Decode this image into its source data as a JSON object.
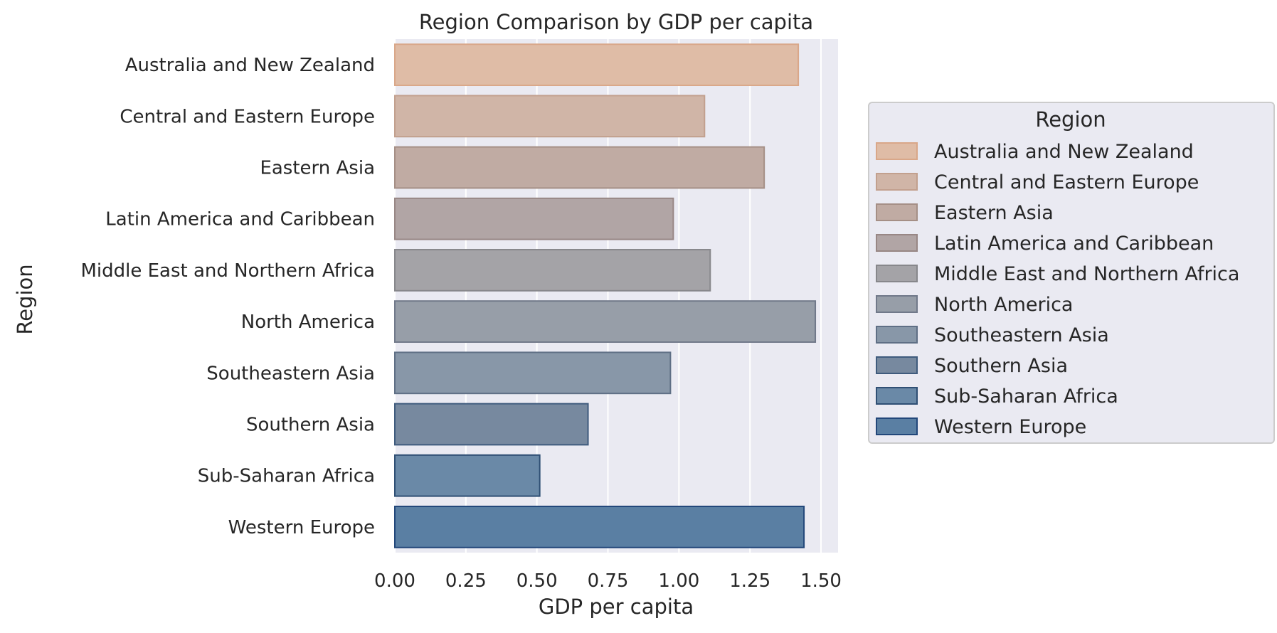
{
  "chart_data": {
    "type": "bar",
    "orientation": "horizontal",
    "title": "Region Comparison by GDP per capita",
    "xlabel": "GDP per capita",
    "ylabel": "Region",
    "xlim": [
      0,
      1.56
    ],
    "xticks": [
      "0.00",
      "0.25",
      "0.50",
      "0.75",
      "1.00",
      "1.25",
      "1.50"
    ],
    "grid": true,
    "categories": [
      "Australia and New Zealand",
      "Central and Eastern Europe",
      "Eastern Asia",
      "Latin America and Caribbean",
      "Middle East and Northern Africa",
      "North America",
      "Southeastern Asia",
      "Southern Asia",
      "Sub-Saharan Africa",
      "Western Europe"
    ],
    "values": [
      1.42,
      1.09,
      1.3,
      0.98,
      1.11,
      1.48,
      0.97,
      0.68,
      0.51,
      1.44
    ],
    "colors": [
      "#dfbca6",
      "#d0b5a7",
      "#c0aba3",
      "#b1a5a5",
      "#a4a3a7",
      "#979ea8",
      "#8897a8",
      "#77899f",
      "#6a89a7",
      "#5a7fa3"
    ],
    "edge_colors": [
      "#d9a789",
      "#c2a08e",
      "#a58f86",
      "#988785",
      "#87878b",
      "#71798a",
      "#5f6f85",
      "#3f5b7d",
      "#2f4f74",
      "#22477a"
    ],
    "legend": {
      "title": "Region",
      "placement": "outside-right",
      "entries": [
        "Australia and New Zealand",
        "Central and Eastern Europe",
        "Eastern Asia",
        "Latin America and Caribbean",
        "Middle East and Northern Africa",
        "North America",
        "Southeastern Asia",
        "Southern Asia",
        "Sub-Saharan Africa",
        "Western Europe"
      ]
    },
    "background": "#eaeaf2"
  }
}
